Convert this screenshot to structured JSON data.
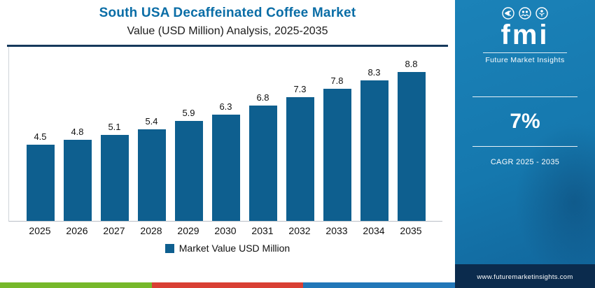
{
  "header": {
    "title": "South USA Decaffeinated Coffee Market",
    "subtitle": "Value (USD Million) Analysis, 2025-2035"
  },
  "chart_data": {
    "type": "bar",
    "categories": [
      "2025",
      "2026",
      "2027",
      "2028",
      "2029",
      "2030",
      "2031",
      "2032",
      "2033",
      "2034",
      "2035"
    ],
    "values": [
      4.5,
      4.8,
      5.1,
      5.4,
      5.9,
      6.3,
      6.8,
      7.3,
      7.8,
      8.3,
      8.8
    ],
    "title": "South USA Decaffeinated Coffee Market Value (USD Million) Analysis, 2025-2035",
    "xlabel": "",
    "ylabel": "",
    "ylim": [
      0,
      9.8
    ],
    "grid": false,
    "legend": [
      "Market Value USD Million"
    ],
    "legend_position": "bottom",
    "bar_color": "#0e5f8f"
  },
  "legend": {
    "label": "Market Value USD Million"
  },
  "sidebar": {
    "logo_text": "fmi",
    "logo_subtext": "Future Market Insights",
    "stat_value": "7%",
    "stat_label": "CAGR 2025 - 2035",
    "website": "www.futuremarketinsights.com"
  },
  "colors": {
    "bar": "#0e5f8f",
    "title_accent": "#0a6da6",
    "header_rule": "#16395c",
    "sidebar_panel": "#1578ae",
    "sidebar_footer": "#0b2b4d",
    "stripe_green": "#76b82a",
    "stripe_red": "#d93f34",
    "stripe_blue": "#2277b8"
  }
}
